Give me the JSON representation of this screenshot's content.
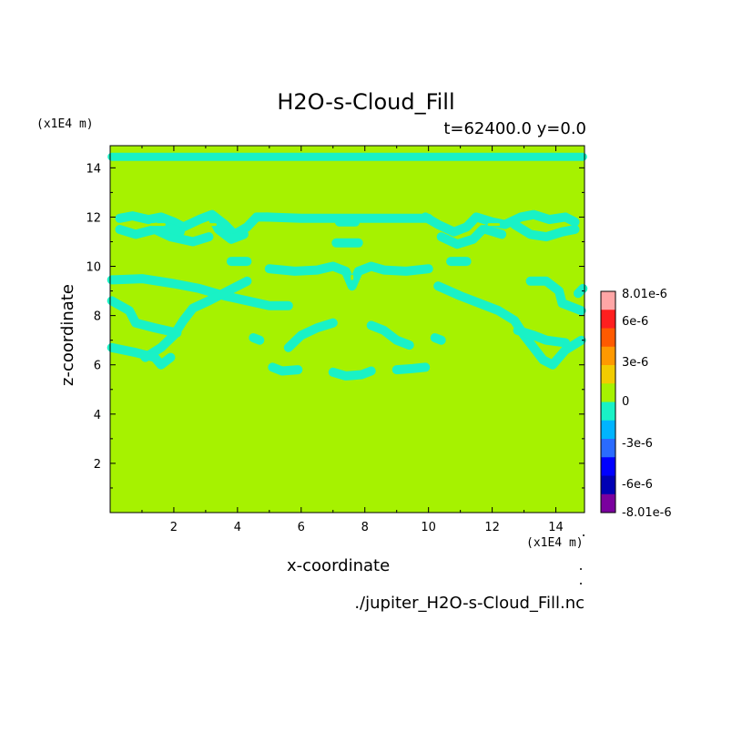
{
  "chart_data": {
    "type": "heatmap",
    "title": "H2O-s-Cloud_Fill",
    "subtitle": "t=62400.0 y=0.0",
    "xlabel": "x-coordinate",
    "ylabel": "z-coordinate",
    "x_unit": "(x1E4 m)",
    "z_unit": "(x1E4 m)",
    "source_file": "./jupiter_H2O-s-Cloud_Fill.nc",
    "xlim": [
      0,
      14.9
    ],
    "ylim": [
      0,
      14.9
    ],
    "x_ticks": [
      "2",
      "4",
      "6",
      "8",
      "10",
      "12",
      "14"
    ],
    "y_ticks": [
      "2",
      "4",
      "6",
      "8",
      "10",
      "12",
      "14"
    ],
    "background_value": 0,
    "background_color": "#a6f200",
    "negative_color": "#19f2c6",
    "regions_value": "0 to -1.5e-6",
    "colorbar": {
      "labels": [
        "8.01e-6",
        "6e-6",
        "3e-6",
        "0",
        "-3e-6",
        "-6e-6",
        "-8.01e-6"
      ],
      "colors": [
        "#ffa6a6",
        "#ff1f1f",
        "#ff5a00",
        "#ff9900",
        "#f2cc00",
        "#a6f200",
        "#19f2c6",
        "#00b4ff",
        "#2a6bff",
        "#0000ff",
        "#0000b4",
        "#7a009e"
      ]
    }
  }
}
